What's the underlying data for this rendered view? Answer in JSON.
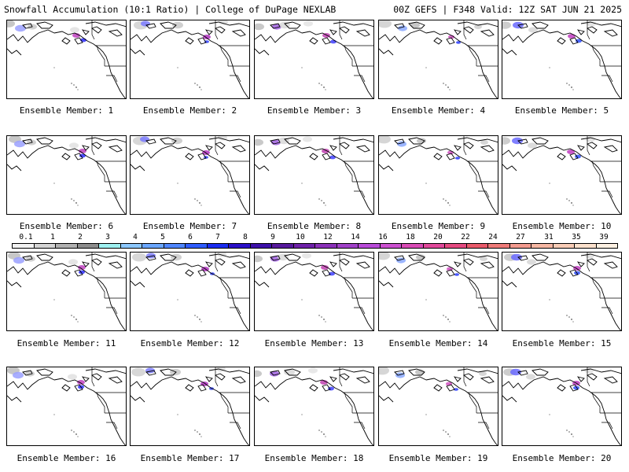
{
  "header": {
    "title": "Snowfall Accumulation (10:1 Ratio) | College of DuPage NEXLAB",
    "run_info": "00Z GEFS | F348 Valid: 12Z SAT JUN 21 2025"
  },
  "members": [
    {
      "label": "Ensemble Member: 1"
    },
    {
      "label": "Ensemble Member: 2"
    },
    {
      "label": "Ensemble Member: 3"
    },
    {
      "label": "Ensemble Member: 4"
    },
    {
      "label": "Ensemble Member: 5"
    },
    {
      "label": "Ensemble Member: 6"
    },
    {
      "label": "Ensemble Member: 7"
    },
    {
      "label": "Ensemble Member: 8"
    },
    {
      "label": "Ensemble Member: 9"
    },
    {
      "label": "Ensemble Member: 10"
    },
    {
      "label": "Ensemble Member: 11"
    },
    {
      "label": "Ensemble Member: 12"
    },
    {
      "label": "Ensemble Member: 13"
    },
    {
      "label": "Ensemble Member: 14"
    },
    {
      "label": "Ensemble Member: 15"
    },
    {
      "label": "Ensemble Member: 16"
    },
    {
      "label": "Ensemble Member: 17"
    },
    {
      "label": "Ensemble Member: 18"
    },
    {
      "label": "Ensemble Member: 19"
    },
    {
      "label": "Ensemble Member: 20"
    }
  ],
  "colorbar": {
    "labels": [
      "0.1",
      "1",
      "2",
      "3",
      "4",
      "5",
      "6",
      "7",
      "8",
      "9",
      "10",
      "12",
      "14",
      "16",
      "18",
      "20",
      "22",
      "24",
      "27",
      "31",
      "35",
      "39"
    ],
    "colors": [
      "#f2f2f2",
      "#d4d4d4",
      "#b0b0b0",
      "#8c8c8c",
      "#9ef0f0",
      "#8cc8ff",
      "#6aa6ff",
      "#4f86ff",
      "#2f5cff",
      "#1a2cf0",
      "#2a10c8",
      "#3c10a8",
      "#56189c",
      "#6e20a8",
      "#8a30b8",
      "#a040c8",
      "#b84ad8",
      "#cc50d0",
      "#d84ab4",
      "#e0489a",
      "#e44a80",
      "#e85a6a",
      "#ee7a78",
      "#f29a8e",
      "#f5b6a2",
      "#f8ccb6",
      "#fbe0cc",
      "#fdf0e2"
    ]
  }
}
